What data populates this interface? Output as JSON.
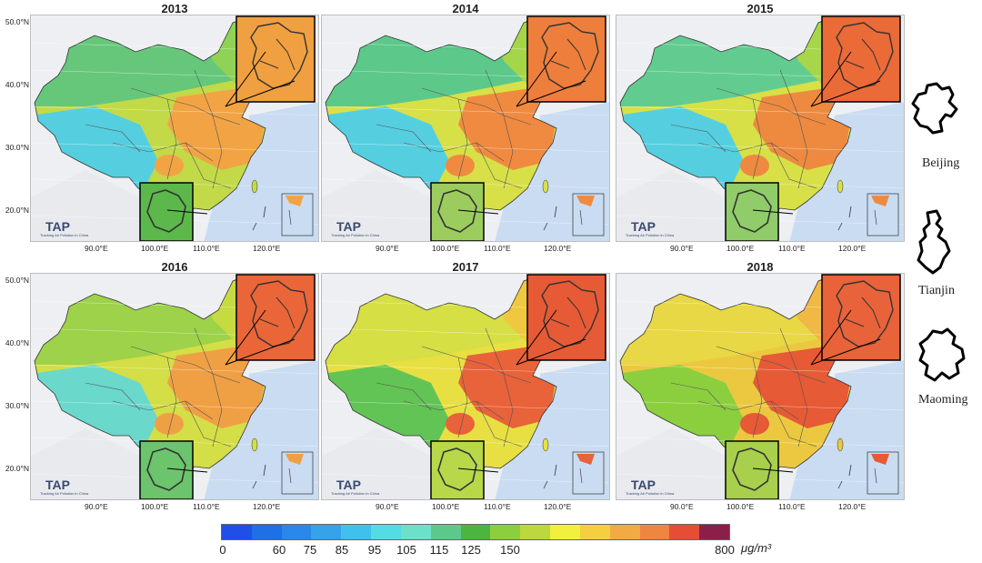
{
  "years": [
    "2013",
    "2014",
    "2015",
    "2016",
    "2017",
    "2018"
  ],
  "latitude_labels": [
    "50.0°N",
    "40.0°N",
    "30.0°N",
    "20.0°N"
  ],
  "longitude_labels": [
    "90.0°E",
    "100.0°E",
    "110.0°E",
    "120.0°E"
  ],
  "logo_text": "TAP",
  "logo_caption": "Tracking Air Pollution in China",
  "cities": [
    "Beijing",
    "Tianjin",
    "Maoming"
  ],
  "legend": {
    "ticks": [
      "0",
      "60",
      "75",
      "85",
      "95",
      "105",
      "115",
      "125",
      "150",
      "800"
    ],
    "unit": "μg/m³",
    "colors": [
      "#1f4fe8",
      "#1f6fe6",
      "#2a88ea",
      "#36a2ea",
      "#40c0ec",
      "#54dce4",
      "#6de0c8",
      "#5cc88a",
      "#4bb53f",
      "#8ccf3e",
      "#bdd83c",
      "#f1f03e",
      "#f5cf40",
      "#f2ab43",
      "#ee8540",
      "#e64d35",
      "#8c1f4a"
    ]
  },
  "panel_colors": {
    "2013": {
      "west": "#66c77a",
      "tibet": "#55cfe0",
      "northeast": "#8fd255",
      "east": "#f2a444",
      "south": "#c2da48",
      "inset_beijing": "#f0a040",
      "inset_south": "#5cb84a"
    },
    "2014": {
      "west": "#5cc88a",
      "tibet": "#55cfe0",
      "northeast": "#a5d64a",
      "east": "#f08a40",
      "south": "#d8e048",
      "inset_beijing": "#ee7e3c",
      "inset_south": "#9ccc5e"
    },
    "2015": {
      "west": "#62cc90",
      "tibet": "#55cfe0",
      "northeast": "#a8d64a",
      "east": "#ee8a40",
      "south": "#d8e048",
      "inset_beijing": "#ea6a38",
      "inset_south": "#90cc6a"
    },
    "2016": {
      "west": "#9dd24a",
      "tibet": "#6bd8cc",
      "northeast": "#c6da42",
      "east": "#f0a044",
      "south": "#d4de46",
      "inset_beijing": "#ea6638",
      "inset_south": "#6cc46c"
    },
    "2017": {
      "west": "#d6df44",
      "tibet": "#62c455",
      "northeast": "#f0c840",
      "east": "#e8623a",
      "south": "#e8e042",
      "inset_beijing": "#e65a36",
      "inset_south": "#b8d84a"
    },
    "2018": {
      "west": "#e8d846",
      "tibet": "#8ccf3e",
      "northeast": "#f0b844",
      "east": "#e65a36",
      "south": "#ecc840",
      "inset_beijing": "#e8623a",
      "inset_south": "#a8d04c"
    }
  }
}
